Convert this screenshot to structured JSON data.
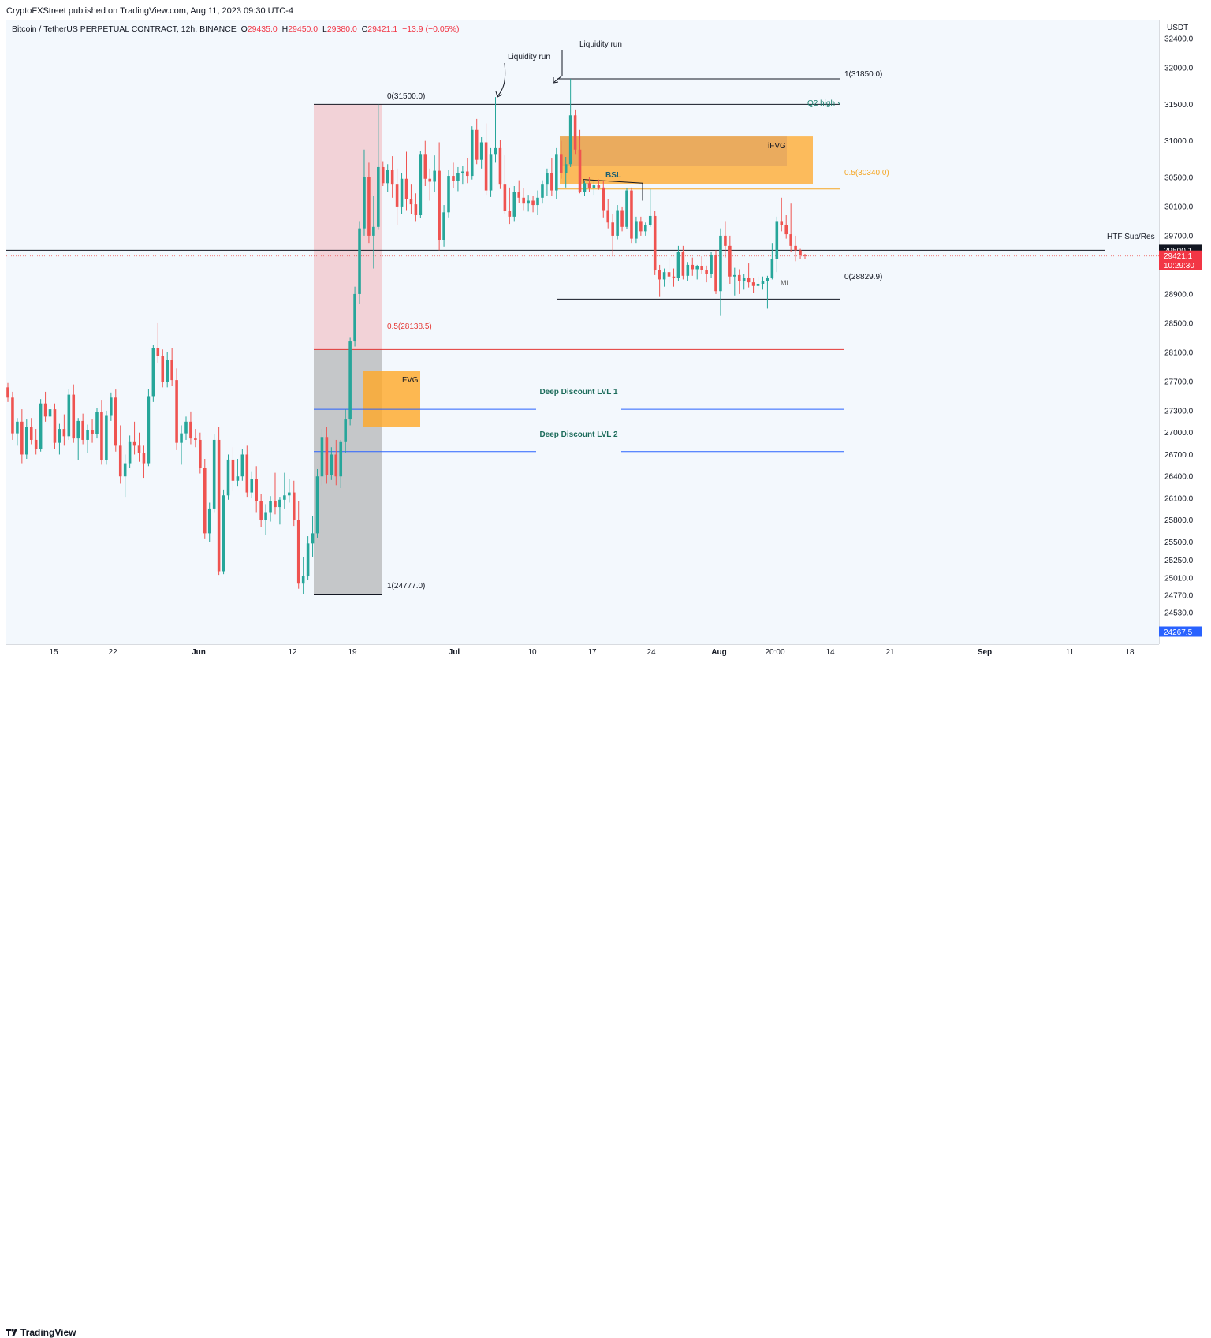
{
  "publisher": "CryptoFXStreet published on TradingView.com, Aug 11, 2023 09:30 UTC-4",
  "symbol": {
    "name": "Bitcoin / TetherUS PERPETUAL CONTRACT, 12h, BINANCE",
    "open_key": "O",
    "open": "29435.0",
    "high_key": "H",
    "high": "29450.0",
    "low_key": "L",
    "low": "29380.0",
    "close_key": "C",
    "close": "29421.1",
    "change": "−13.9 (−0.05%)"
  },
  "currency": "USDT",
  "footer": {
    "brand": "TradingView"
  },
  "colors": {
    "up": "#26a69a",
    "down": "#ef5350",
    "background": "#f3f8fd",
    "premium_zone": "#f2cdd3",
    "discount_zone": "#c5c7c9",
    "fvg": "#ffa726",
    "fib_orange": "#f5a623",
    "fib_red": "#e53935",
    "deep_blue": "#2962ff"
  },
  "chart_data": {
    "type": "candlestick",
    "timeframe": "12h",
    "ylim": [
      24100,
      32650
    ],
    "price_ticks": [
      "32400.0",
      "32000.0",
      "31500.0",
      "31000.0",
      "30500.0",
      "30100.0",
      "29700.0",
      "28900.0",
      "28500.0",
      "28100.0",
      "27700.0",
      "27300.0",
      "27000.0",
      "26700.0",
      "26400.0",
      "26100.0",
      "25800.0",
      "25500.0",
      "25250.0",
      "25010.0",
      "24770.0",
      "24530.0"
    ],
    "time_ticks": [
      "15",
      "22",
      "Jun",
      "12",
      "19",
      "Jul",
      "10",
      "17",
      "24",
      "Aug",
      "20:00",
      "14",
      "21",
      "Sep",
      "11",
      "18"
    ],
    "price_labels": [
      {
        "text": "29500.1",
        "value": 29500.1,
        "style": "black"
      },
      {
        "text": "29421.1",
        "value": 29421.1,
        "style": "red"
      },
      {
        "text": "10:29:30",
        "value": 29421.1,
        "style": "red"
      },
      {
        "text": "24267.5",
        "value": 24267.5,
        "style": "blue"
      }
    ],
    "last_price": 29421.1,
    "candles": [
      [
        27620,
        27680,
        27420,
        27480
      ],
      [
        27480,
        27560,
        26900,
        26990
      ],
      [
        26990,
        27200,
        26820,
        27150
      ],
      [
        27150,
        27320,
        26580,
        26700
      ],
      [
        26700,
        27180,
        26640,
        27080
      ],
      [
        27080,
        27200,
        26840,
        26900
      ],
      [
        26900,
        27050,
        26700,
        26780
      ],
      [
        26780,
        27460,
        26740,
        27400
      ],
      [
        27400,
        27560,
        27150,
        27220
      ],
      [
        27220,
        27380,
        27080,
        27320
      ],
      [
        27320,
        27400,
        26780,
        26860
      ],
      [
        26860,
        27120,
        26700,
        27050
      ],
      [
        27050,
        27250,
        26820,
        26950
      ],
      [
        26950,
        27600,
        26900,
        27520
      ],
      [
        27520,
        27660,
        26860,
        26920
      ],
      [
        26920,
        27200,
        26620,
        27160
      ],
      [
        27160,
        27260,
        26840,
        26900
      ],
      [
        26900,
        27110,
        26720,
        27040
      ],
      [
        27040,
        27180,
        26860,
        26980
      ],
      [
        26980,
        27340,
        26920,
        27280
      ],
      [
        27280,
        27450,
        26560,
        26620
      ],
      [
        26620,
        27300,
        26560,
        27240
      ],
      [
        27240,
        27550,
        27160,
        27480
      ],
      [
        27480,
        27590,
        26740,
        26820
      ],
      [
        26820,
        27100,
        26300,
        26400
      ],
      [
        26400,
        26700,
        26120,
        26580
      ],
      [
        26580,
        26960,
        26520,
        26880
      ],
      [
        26880,
        27150,
        26700,
        26820
      ],
      [
        26820,
        27000,
        26600,
        26720
      ],
      [
        26720,
        26820,
        26380,
        26580
      ],
      [
        26580,
        27600,
        26540,
        27500
      ],
      [
        27500,
        28200,
        27420,
        28160
      ],
      [
        28160,
        28500,
        27950,
        28050
      ],
      [
        28050,
        28140,
        27620,
        27690
      ],
      [
        27690,
        28100,
        27620,
        28000
      ],
      [
        28000,
        28160,
        27640,
        27720
      ],
      [
        27720,
        27880,
        26760,
        26860
      ],
      [
        26860,
        27100,
        26560,
        26990
      ],
      [
        26990,
        27220,
        26900,
        27150
      ],
      [
        27150,
        27290,
        26840,
        26920
      ],
      [
        26920,
        27050,
        26800,
        26900
      ],
      [
        26900,
        27000,
        26440,
        26520
      ],
      [
        26520,
        26640,
        25550,
        25620
      ],
      [
        25620,
        26040,
        25500,
        25960
      ],
      [
        25960,
        26980,
        25900,
        26900
      ],
      [
        26900,
        27080,
        25050,
        25100
      ],
      [
        25100,
        26220,
        25060,
        26140
      ],
      [
        26140,
        26700,
        26080,
        26630
      ],
      [
        26630,
        26800,
        26200,
        26340
      ],
      [
        26340,
        26640,
        26260,
        26400
      ],
      [
        26400,
        26780,
        26340,
        26700
      ],
      [
        26700,
        26820,
        26120,
        26180
      ],
      [
        26180,
        26460,
        26100,
        26360
      ],
      [
        26360,
        26540,
        25900,
        26060
      ],
      [
        26060,
        26160,
        25700,
        25800
      ],
      [
        25800,
        26020,
        25600,
        25900
      ],
      [
        25900,
        26130,
        25780,
        26060
      ],
      [
        26060,
        26450,
        25880,
        25980
      ],
      [
        25980,
        26120,
        25740,
        26080
      ],
      [
        26080,
        26450,
        25960,
        26140
      ],
      [
        26140,
        26360,
        26040,
        26180
      ],
      [
        26180,
        26340,
        25720,
        25800
      ],
      [
        25800,
        26060,
        24860,
        24930
      ],
      [
        24930,
        25300,
        24790,
        25040
      ],
      [
        25040,
        25580,
        24980,
        25480
      ],
      [
        25480,
        25860,
        25300,
        25620
      ],
      [
        25620,
        26500,
        25560,
        26400
      ],
      [
        26400,
        27050,
        26280,
        26940
      ],
      [
        26940,
        27080,
        26300,
        26420
      ],
      [
        26420,
        26800,
        26350,
        26700
      ],
      [
        26700,
        26900,
        26280,
        26400
      ],
      [
        26400,
        26900,
        26240,
        26880
      ],
      [
        26880,
        27320,
        26720,
        27180
      ],
      [
        27180,
        28300,
        27100,
        28250
      ],
      [
        28250,
        29000,
        28180,
        28900
      ],
      [
        28900,
        29900,
        28760,
        29800
      ],
      [
        29800,
        30880,
        29700,
        30500
      ],
      [
        30500,
        30700,
        29600,
        29700
      ],
      [
        29700,
        30250,
        29250,
        29820
      ],
      [
        29820,
        31500,
        29780,
        30640
      ],
      [
        30640,
        30720,
        30380,
        30420
      ],
      [
        30420,
        30680,
        30300,
        30600
      ],
      [
        30600,
        30790,
        30220,
        30400
      ],
      [
        30400,
        30620,
        29850,
        30100
      ],
      [
        30100,
        30560,
        30000,
        30480
      ],
      [
        30480,
        30850,
        30050,
        30200
      ],
      [
        30200,
        30400,
        30000,
        30130
      ],
      [
        30130,
        30280,
        29900,
        29980
      ],
      [
        29980,
        30860,
        29940,
        30820
      ],
      [
        30820,
        31000,
        30380,
        30480
      ],
      [
        30480,
        30620,
        30180,
        30440
      ],
      [
        30440,
        30800,
        30300,
        30590
      ],
      [
        30590,
        30980,
        29500,
        29640
      ],
      [
        29640,
        30120,
        29550,
        30020
      ],
      [
        30020,
        30600,
        29950,
        30520
      ],
      [
        30520,
        30700,
        30350,
        30450
      ],
      [
        30450,
        30640,
        30310,
        30560
      ],
      [
        30560,
        30660,
        30400,
        30580
      ],
      [
        30580,
        30760,
        30420,
        30520
      ],
      [
        30520,
        31200,
        30470,
        31150
      ],
      [
        31150,
        31300,
        30680,
        30740
      ],
      [
        30740,
        31050,
        30620,
        30980
      ],
      [
        30980,
        31240,
        30260,
        30320
      ],
      [
        30320,
        30900,
        30230,
        30820
      ],
      [
        30820,
        31600,
        30700,
        30900
      ],
      [
        30900,
        31010,
        30340,
        30400
      ],
      [
        30400,
        30800,
        30000,
        30040
      ],
      [
        30040,
        30360,
        29860,
        29960
      ],
      [
        29960,
        30380,
        29900,
        30300
      ],
      [
        30300,
        30460,
        30150,
        30220
      ],
      [
        30220,
        30350,
        30050,
        30140
      ],
      [
        30140,
        30260,
        30030,
        30180
      ],
      [
        30180,
        30240,
        30020,
        30120
      ],
      [
        30120,
        30320,
        29980,
        30220
      ],
      [
        30220,
        30460,
        30140,
        30400
      ],
      [
        30400,
        30620,
        30250,
        30560
      ],
      [
        30560,
        30760,
        30250,
        30320
      ],
      [
        30320,
        30900,
        30200,
        30820
      ],
      [
        30820,
        31000,
        30480,
        30560
      ],
      [
        30560,
        30780,
        30360,
        30680
      ],
      [
        30680,
        31850,
        30640,
        31350
      ],
      [
        31350,
        31430,
        30820,
        30880
      ],
      [
        30880,
        31150,
        30280,
        30300
      ],
      [
        30300,
        30450,
        30240,
        30420
      ],
      [
        30420,
        30500,
        30300,
        30350
      ],
      [
        30350,
        30440,
        30260,
        30390
      ],
      [
        30390,
        30470,
        30330,
        30360
      ],
      [
        30360,
        30450,
        29950,
        30050
      ],
      [
        30050,
        30200,
        29800,
        29880
      ],
      [
        29880,
        30000,
        29440,
        29700
      ],
      [
        29700,
        30120,
        29650,
        30050
      ],
      [
        30050,
        30100,
        29760,
        29820
      ],
      [
        29820,
        30350,
        29790,
        30320
      ],
      [
        30320,
        30360,
        29600,
        29660
      ],
      [
        29660,
        29960,
        29600,
        29900
      ],
      [
        29900,
        29960,
        29700,
        29760
      ],
      [
        29760,
        29880,
        29700,
        29840
      ],
      [
        29840,
        30340,
        29820,
        29970
      ],
      [
        29970,
        30040,
        29160,
        29230
      ],
      [
        29230,
        29300,
        28860,
        29100
      ],
      [
        29100,
        29250,
        29000,
        29200
      ],
      [
        29200,
        29400,
        29050,
        29140
      ],
      [
        29140,
        29250,
        29000,
        29120
      ],
      [
        29120,
        29560,
        29080,
        29480
      ],
      [
        29480,
        29560,
        29100,
        29150
      ],
      [
        29150,
        29340,
        29080,
        29300
      ],
      [
        29300,
        29400,
        29150,
        29240
      ],
      [
        29240,
        29300,
        29100,
        29280
      ],
      [
        29280,
        29420,
        29180,
        29230
      ],
      [
        29230,
        29290,
        29060,
        29180
      ],
      [
        29180,
        29480,
        29120,
        29440
      ],
      [
        29440,
        29500,
        28900,
        28940
      ],
      [
        28940,
        29800,
        28600,
        29700
      ],
      [
        29700,
        29900,
        29400,
        29560
      ],
      [
        29560,
        29700,
        29040,
        29140
      ],
      [
        29140,
        29260,
        28880,
        29160
      ],
      [
        29160,
        29240,
        28900,
        29080
      ],
      [
        29080,
        29180,
        28960,
        29120
      ],
      [
        29120,
        29320,
        28990,
        29060
      ],
      [
        29060,
        29120,
        28920,
        29010
      ],
      [
        29010,
        29140,
        28960,
        29040
      ],
      [
        29040,
        29140,
        28960,
        29080
      ],
      [
        29080,
        29150,
        28700,
        29120
      ],
      [
        29120,
        29600,
        29100,
        29380
      ],
      [
        29380,
        29960,
        29200,
        29900
      ],
      [
        29900,
        30220,
        29760,
        29840
      ],
      [
        29840,
        29980,
        29660,
        29720
      ],
      [
        29720,
        30140,
        29480,
        29560
      ],
      [
        29560,
        29700,
        29350,
        29500
      ],
      [
        29500,
        29520,
        29380,
        29435
      ],
      [
        29435,
        29450,
        29380,
        29421
      ]
    ]
  },
  "annotations": {
    "liquidity_run_1": "Liquidity run",
    "liquidity_run_2": "Liquidity run",
    "fib_top": "1(31850.0)",
    "fib_q2": "0(31500.0)",
    "q2_high": "Q2 high",
    "ifvg": "iFVG",
    "fib_half_upper": "0.5(30340.0)",
    "bsl": "BSL",
    "htf": "HTF Sup/Res",
    "fib_zero_lower": "0(28829.9)",
    "ml": "ML",
    "fib_half_lower": "0.5(28138.5)",
    "fvg": "FVG",
    "deep1": "Deep Discount LVL 1",
    "deep2": "Deep Discount LVL 2",
    "fib_bottom": "1(24777.0)"
  }
}
